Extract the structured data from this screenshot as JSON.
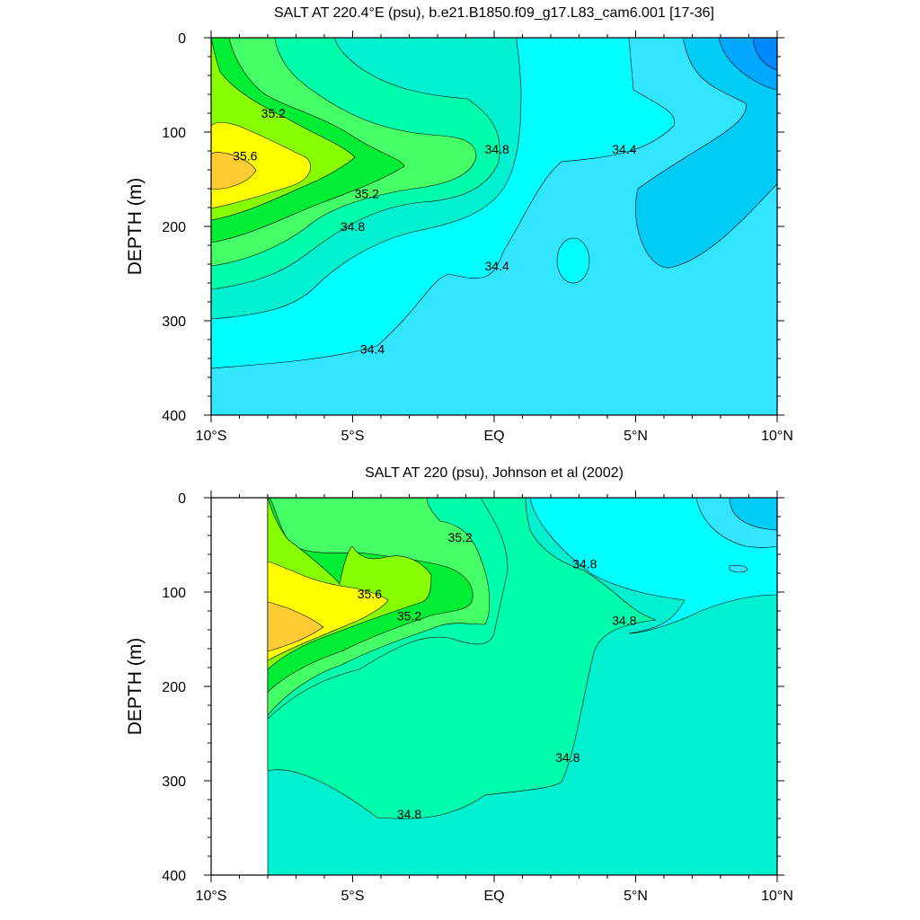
{
  "chart_data": [
    {
      "type": "contour",
      "title": "SALT AT 220.4°E (psu), b.e21.B1850.f09_g17.L83_cam6.001 [17-36]",
      "ylabel": "DEPTH (m)",
      "x_tick_labels": [
        "10°S",
        "5°S",
        "EQ",
        "5°N",
        "10°N"
      ],
      "x_ticks": [
        -10,
        -5,
        0,
        5,
        10
      ],
      "xlim": [
        -10,
        10
      ],
      "y_ticks": [
        0,
        100,
        200,
        300,
        400
      ],
      "ylim": [
        400,
        0
      ],
      "y_inverted": true,
      "contour_interval": 0.2,
      "contour_labels": [
        {
          "text": "35.2",
          "lat": -7.8,
          "depth": 80
        },
        {
          "text": "35.6",
          "lat": -8.8,
          "depth": 125
        },
        {
          "text": "35.2",
          "lat": -4.5,
          "depth": 165
        },
        {
          "text": "34.8",
          "lat": -5.0,
          "depth": 200
        },
        {
          "text": "34.8",
          "lat": 0.1,
          "depth": 118
        },
        {
          "text": "34.4",
          "lat": 4.6,
          "depth": 118
        },
        {
          "text": "34.4",
          "lat": 0.1,
          "depth": 242
        },
        {
          "text": "34.4",
          "lat": -4.3,
          "depth": 330
        }
      ],
      "levels": [
        {
          "value": "≤34.0",
          "color": "#00a8ff"
        },
        {
          "value": "34.0",
          "color": "#00ccf5"
        },
        {
          "value": "34.2",
          "color": "#33e6ff"
        },
        {
          "value": "34.4",
          "color": "#00ffff"
        },
        {
          "value": "34.6",
          "color": "#00f0d0"
        },
        {
          "value": "34.8",
          "color": "#00ffaa"
        },
        {
          "value": "35.0",
          "color": "#44ff66"
        },
        {
          "value": "35.2",
          "color": "#00ee33"
        },
        {
          "value": "35.4",
          "color": "#88ff00"
        },
        {
          "value": "35.6",
          "color": "#ffff00"
        },
        {
          "value": "35.8",
          "color": "#ffcc33"
        }
      ]
    },
    {
      "type": "contour",
      "title": "SALT AT 220 (psu), Johnson et al (2002)",
      "ylabel": "DEPTH (m)",
      "x_tick_labels": [
        "10°S",
        "5°S",
        "EQ",
        "5°N",
        "10°N"
      ],
      "x_ticks": [
        -10,
        -5,
        0,
        5,
        10
      ],
      "xlim": [
        -10,
        10
      ],
      "y_ticks": [
        0,
        100,
        200,
        300,
        400
      ],
      "ylim": [
        400,
        0
      ],
      "y_inverted": true,
      "data_start_lat": -8,
      "contour_interval": 0.2,
      "contour_labels": [
        {
          "text": "35.2",
          "lat": -1.2,
          "depth": 42
        },
        {
          "text": "35.6",
          "lat": -4.4,
          "depth": 102
        },
        {
          "text": "35.2",
          "lat": -3.0,
          "depth": 125
        },
        {
          "text": "34.8",
          "lat": 3.2,
          "depth": 70
        },
        {
          "text": "34.8",
          "lat": 4.6,
          "depth": 130
        },
        {
          "text": "34.8",
          "lat": 2.6,
          "depth": 275
        },
        {
          "text": "34.8",
          "lat": -3.0,
          "depth": 335
        }
      ],
      "levels": [
        {
          "value": "34.0",
          "color": "#00ccf5"
        },
        {
          "value": "34.2",
          "color": "#33e6ff"
        },
        {
          "value": "34.4",
          "color": "#00ffff"
        },
        {
          "value": "34.6",
          "color": "#00f0d0"
        },
        {
          "value": "34.8",
          "color": "#00ffaa"
        },
        {
          "value": "35.0",
          "color": "#44ff66"
        },
        {
          "value": "35.2",
          "color": "#00ee33"
        },
        {
          "value": "35.4",
          "color": "#88ff00"
        },
        {
          "value": "35.6",
          "color": "#ffff00"
        },
        {
          "value": "35.8",
          "color": "#ffcc33"
        }
      ]
    }
  ]
}
